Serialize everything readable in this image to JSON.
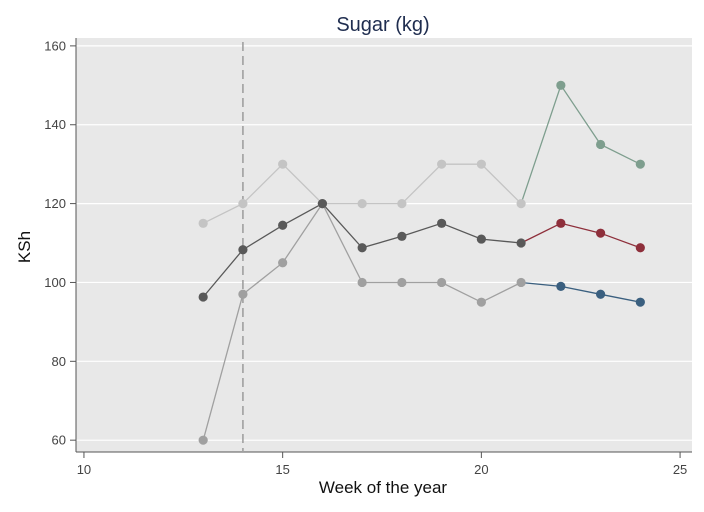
{
  "chart_data": {
    "type": "line",
    "title": "Sugar (kg)",
    "xlabel": "Week of the year",
    "ylabel": "KSh",
    "xlim": [
      9.8,
      25.3
    ],
    "ylim": [
      57,
      162
    ],
    "xticks": [
      10,
      15,
      20,
      25
    ],
    "yticks": [
      60,
      80,
      100,
      120,
      140,
      160
    ],
    "grid": "horizontal",
    "background": "#e8e8e8",
    "vline": {
      "x": 14,
      "style": "dashed",
      "color": "#a0a0a0"
    },
    "series": [
      {
        "color": "#c4c4c4",
        "points": [
          {
            "x": 13,
            "y": 115
          },
          {
            "x": 14,
            "y": 120
          },
          {
            "x": 15,
            "y": 130
          },
          {
            "x": 16,
            "y": 120
          },
          {
            "x": 17,
            "y": 120
          },
          {
            "x": 18,
            "y": 120
          },
          {
            "x": 19,
            "y": 130
          },
          {
            "x": 20,
            "y": 130
          },
          {
            "x": 21,
            "y": 120
          }
        ]
      },
      {
        "color": "#7e9e8e",
        "points": [
          {
            "x": 21,
            "y": 120
          },
          {
            "x": 22,
            "y": 150
          },
          {
            "x": 23,
            "y": 135
          },
          {
            "x": 24,
            "y": 130
          }
        ],
        "marker_from_index": 1
      },
      {
        "color": "#a0a0a0",
        "points": [
          {
            "x": 13,
            "y": 60
          },
          {
            "x": 14,
            "y": 97
          },
          {
            "x": 15,
            "y": 105
          },
          {
            "x": 16,
            "y": 120
          },
          {
            "x": 17,
            "y": 100
          },
          {
            "x": 18,
            "y": 100
          },
          {
            "x": 19,
            "y": 100
          },
          {
            "x": 20,
            "y": 95
          },
          {
            "x": 21,
            "y": 100
          }
        ]
      },
      {
        "color": "#3a5f7f",
        "points": [
          {
            "x": 21,
            "y": 100
          },
          {
            "x": 22,
            "y": 99
          },
          {
            "x": 23,
            "y": 97
          },
          {
            "x": 24,
            "y": 95
          }
        ],
        "marker_from_index": 1
      },
      {
        "color": "#595959",
        "points": [
          {
            "x": 13,
            "y": 96.3
          },
          {
            "x": 14,
            "y": 108.3
          },
          {
            "x": 15,
            "y": 114.5
          },
          {
            "x": 16,
            "y": 120
          },
          {
            "x": 17,
            "y": 108.8
          },
          {
            "x": 18,
            "y": 111.7
          },
          {
            "x": 19,
            "y": 115
          },
          {
            "x": 20,
            "y": 111
          },
          {
            "x": 21,
            "y": 110
          }
        ]
      },
      {
        "color": "#8e2f3b",
        "points": [
          {
            "x": 21,
            "y": 110
          },
          {
            "x": 22,
            "y": 115
          },
          {
            "x": 23,
            "y": 112.5
          },
          {
            "x": 24,
            "y": 108.8
          }
        ],
        "marker_from_index": 1
      }
    ]
  }
}
